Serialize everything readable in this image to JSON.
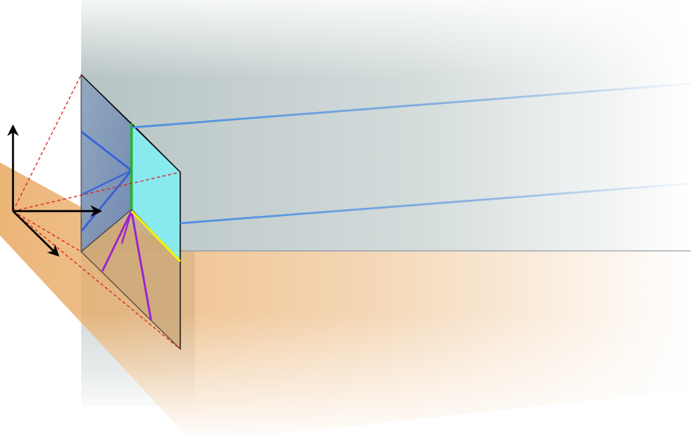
{
  "diagram": {
    "colors": {
      "background": "#ffffff",
      "wall_gray": "#9fb0b0",
      "floor_orange": "#e8a860",
      "prism_face_blue": "#8fa8c0",
      "prism_face_cyan": "#7ff0f4",
      "prism_lower": "#b8a37a",
      "blue_ray": "#4a8fe0",
      "blue_fan": "#3a5fd8",
      "magenta_ray": "#cc33cc",
      "purple_fan": "#9a1fd0",
      "green_edge": "#1fb61f",
      "yellow_edge": "#f2f200",
      "red_dashed": "#dd2222",
      "axis_arrows": "#000000",
      "edge_outline": "#000000"
    },
    "axes": {
      "icon": "xyz-axes-icon",
      "count": 3
    },
    "rays": {
      "blue_count": 2,
      "magenta_count": 2,
      "fan_lines_per_face": 3
    }
  }
}
